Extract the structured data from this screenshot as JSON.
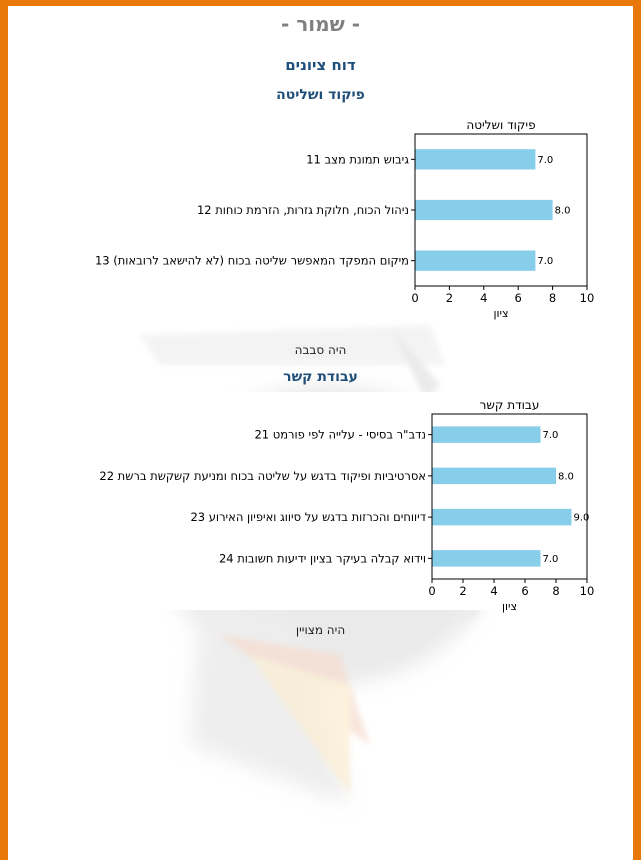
{
  "header": {
    "classification": "- שמור -",
    "report_title": "דוח ציונים"
  },
  "sections": [
    {
      "title": "פיקוד ושליטה",
      "note": "היה סבבה"
    },
    {
      "title": "עבודת קשר",
      "note": "היה מצויין"
    }
  ],
  "chart_data": [
    {
      "type": "bar",
      "orientation": "horizontal",
      "title": "פיקוד ושליטה",
      "xlabel": "ציון",
      "xlim": [
        0,
        10
      ],
      "xticks": [
        0,
        2,
        4,
        6,
        8,
        10
      ],
      "categories": [
        "11 גיבוש תמונת מצב",
        "12 ניהול הכוח, חלוקת גזרות, הזרמת כוחות",
        "13 מיקום המפקד המאפשר שליטה בכוח (לא להישאב לרובאות)"
      ],
      "values": [
        7.0,
        8.0,
        7.0
      ],
      "value_labels": [
        "7.0",
        "8.0",
        "7.0"
      ],
      "bar_color": "#87ceeb",
      "grid": false
    },
    {
      "type": "bar",
      "orientation": "horizontal",
      "title": "עבודת קשר",
      "xlabel": "ציון",
      "xlim": [
        0,
        10
      ],
      "xticks": [
        0,
        2,
        4,
        6,
        8,
        10
      ],
      "categories": [
        "21 נדב\"ר בסיסי - עלייה לפי פורמט",
        "22 אסרטיביות ופיקוד בדגש על שליטה בכוח ומניעת קשקשת ברשת",
        "23 דיווחים והכרזות בדגש על סיווג ואיפיון האירוע",
        "24 וידוא קבלה בעיקר בציון ידיעות חשובות"
      ],
      "values": [
        7.0,
        8.0,
        9.0,
        7.0
      ],
      "value_labels": [
        "7.0",
        "8.0",
        "9.0",
        "7.0"
      ],
      "bar_color": "#87ceeb",
      "grid": false
    }
  ]
}
